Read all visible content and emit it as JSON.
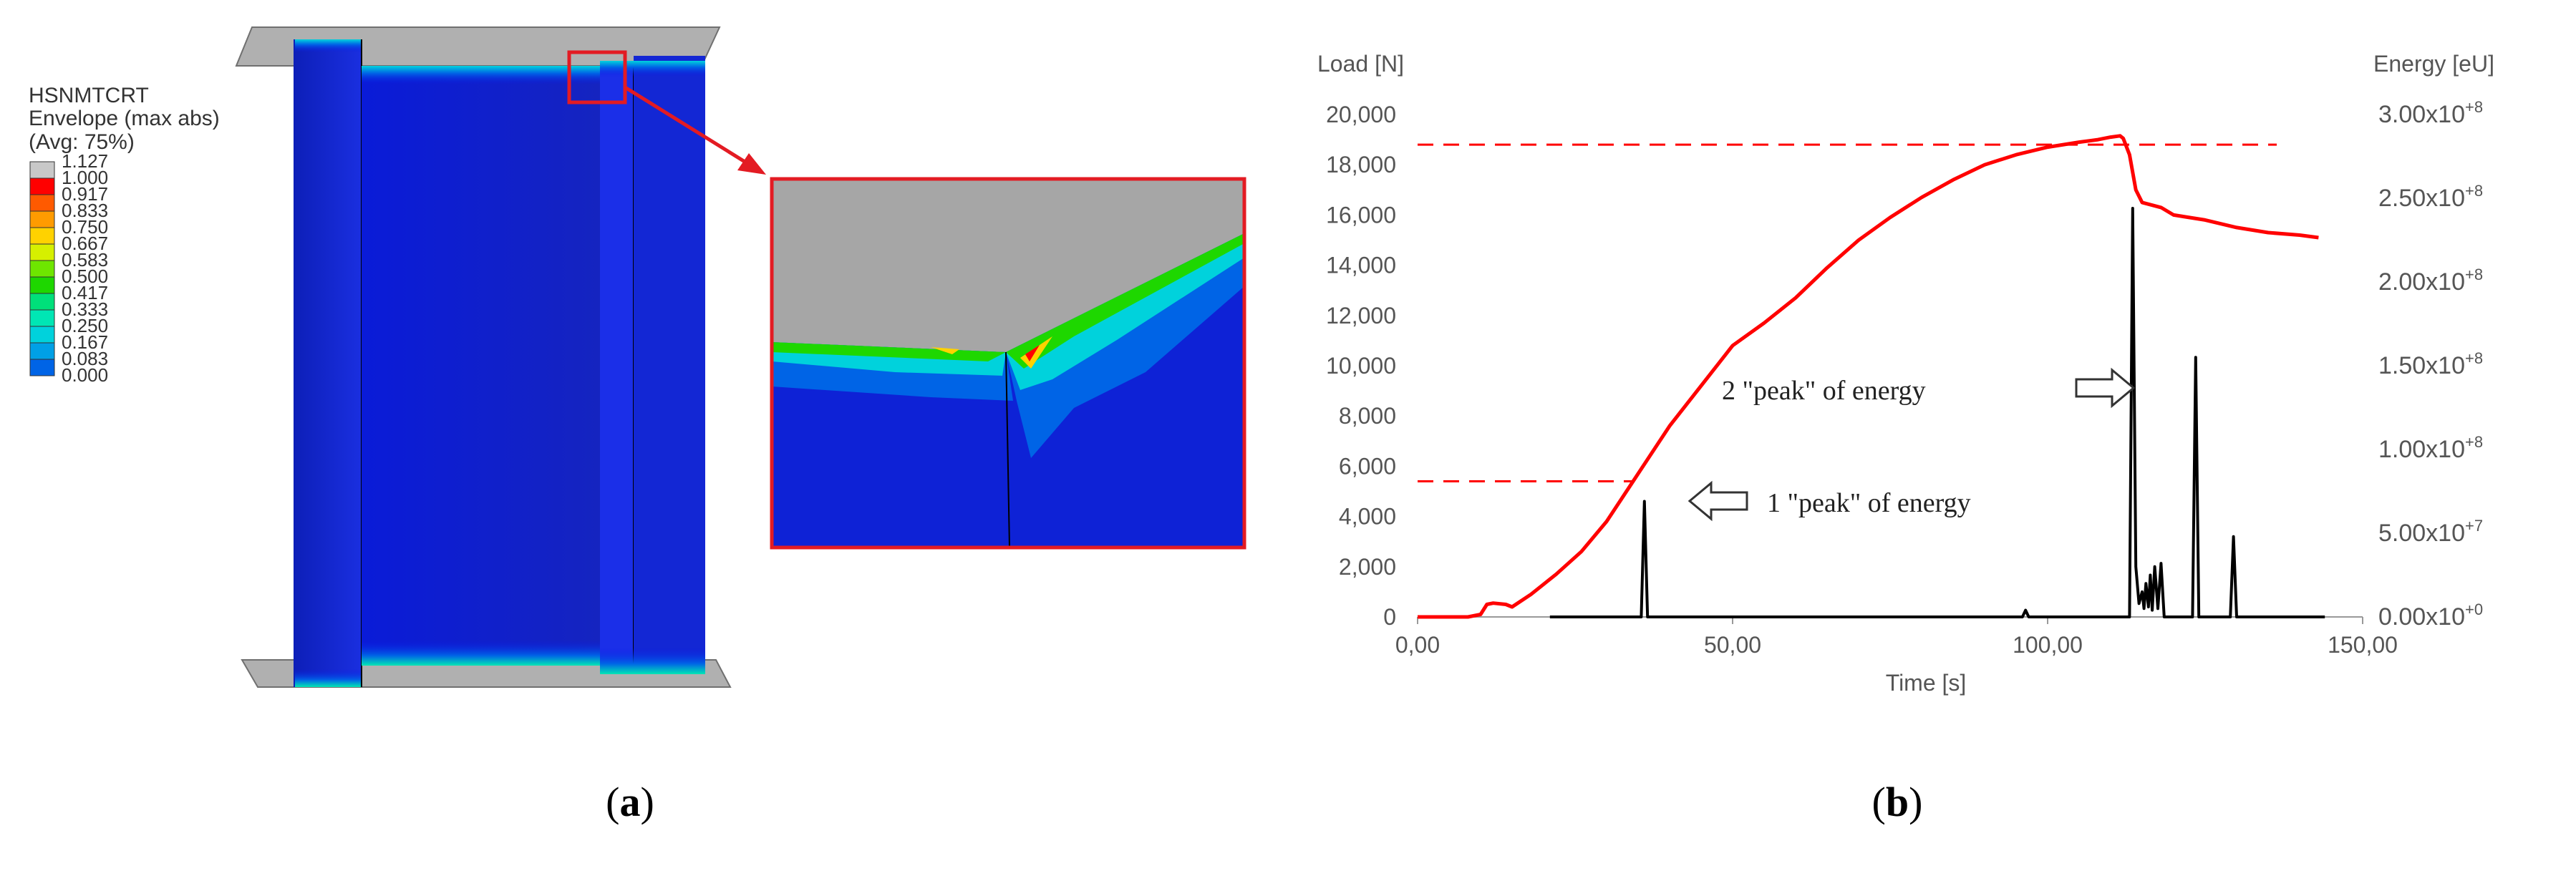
{
  "figure_a": {
    "legend": {
      "title_lines": [
        "HSNMTCRT",
        "Envelope (max abs)",
        "(Avg: 75%)"
      ],
      "entries": [
        {
          "label": "1.127",
          "color": "#c8c8c8"
        },
        {
          "label": "1.000",
          "color": "#ff0000"
        },
        {
          "label": "0.917",
          "color": "#ff5a00"
        },
        {
          "label": "0.833",
          "color": "#ff9b00"
        },
        {
          "label": "0.750",
          "color": "#ffd200"
        },
        {
          "label": "0.667",
          "color": "#d6f000"
        },
        {
          "label": "0.583",
          "color": "#6ee600"
        },
        {
          "label": "0.500",
          "color": "#1ed700"
        },
        {
          "label": "0.417",
          "color": "#00e07a"
        },
        {
          "label": "0.333",
          "color": "#00e6b4"
        },
        {
          "label": "0.250",
          "color": "#00d2dc"
        },
        {
          "label": "0.167",
          "color": "#00a0e6"
        },
        {
          "label": "0.083",
          "color": "#0064e6"
        },
        {
          "label": "0.000",
          "color": "#0a18e6"
        }
      ]
    },
    "caption": "(a)"
  },
  "figure_b": {
    "caption": "(b)",
    "annotations": {
      "peak2": "2 \"peak\" of energy",
      "peak1": "1 \"peak\" of energy"
    },
    "chart_data": {
      "type": "line",
      "xlabel": "Time [s]",
      "ylabel_left": "Load [N]",
      "ylabel_right": "Energy [eU]",
      "xlim": [
        0,
        150
      ],
      "ylim_left": [
        0,
        20000
      ],
      "ylim_right": [
        0,
        300000000
      ],
      "x_ticks": [
        "0,00",
        "50,00",
        "100,00",
        "150,00"
      ],
      "y_ticks_left": [
        "0",
        "2,000",
        "4,000",
        "6,000",
        "8,000",
        "10,000",
        "12,000",
        "14,000",
        "16,000",
        "18,000",
        "20,000"
      ],
      "y_ticks_right": [
        {
          "base": "0.00x10",
          "exp": "+0"
        },
        {
          "base": "5.00x10",
          "exp": "+7"
        },
        {
          "base": "1.00x10",
          "exp": "+8"
        },
        {
          "base": "1.50x10",
          "exp": "+8"
        },
        {
          "base": "2.00x10",
          "exp": "+8"
        },
        {
          "base": "2.50x10",
          "exp": "+8"
        },
        {
          "base": "3.00x10",
          "exp": "+8"
        }
      ],
      "grid": false,
      "reference_lines_load": [
        18800,
        5400
      ],
      "series": [
        {
          "axis": "left",
          "color": "#ff0000",
          "x": [
            0,
            4,
            8,
            10,
            11,
            12,
            14,
            15,
            18,
            22,
            26,
            30,
            35,
            40,
            45,
            50,
            55,
            60,
            65,
            70,
            75,
            80,
            85,
            90,
            95,
            100,
            105,
            108,
            110,
            111.5,
            112,
            113,
            114,
            115,
            118,
            120,
            125,
            130,
            135,
            140,
            143
          ],
          "y": [
            0,
            0,
            0,
            100,
            500,
            550,
            500,
            400,
            900,
            1700,
            2600,
            3800,
            5700,
            7600,
            9200,
            10800,
            11700,
            12700,
            13900,
            15000,
            15900,
            16700,
            17400,
            18000,
            18400,
            18700,
            18900,
            19000,
            19100,
            19150,
            19050,
            18400,
            17000,
            16500,
            16300,
            16000,
            15800,
            15500,
            15300,
            15200,
            15100
          ]
        },
        {
          "axis": "right",
          "color": "#000000",
          "x": [
            21,
            35.5,
            36,
            36.5,
            96,
            96.5,
            97,
            113,
            113.5,
            114,
            114.5,
            115,
            115.3,
            115.6,
            116,
            116.3,
            116.6,
            117,
            117.5,
            118,
            118.5,
            119,
            123,
            123.5,
            124,
            124.5,
            129,
            129.5,
            130,
            130.5,
            144
          ],
          "y": [
            0,
            0,
            69000000,
            0,
            0,
            4000000,
            0,
            0,
            244000000,
            30000000,
            8000000,
            15000000,
            5000000,
            20000000,
            6000000,
            25000000,
            4000000,
            30000000,
            5000000,
            32000000,
            0,
            0,
            0,
            155000000,
            0,
            0,
            0,
            48000000,
            0,
            0,
            0
          ]
        }
      ]
    }
  }
}
